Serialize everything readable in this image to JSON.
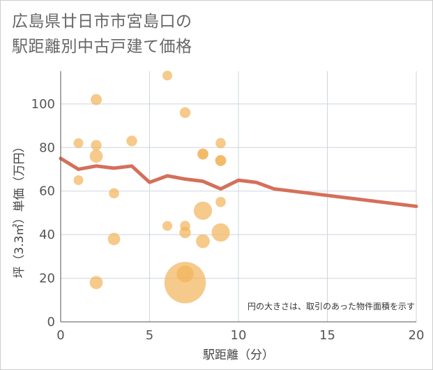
{
  "chart_data": {
    "type": "scatter+line",
    "title_line1": "広島県廿日市市宮島口の",
    "title_line2": "駅距離別中古戸建て価格",
    "xlabel": "駅距離（分）",
    "ylabel": "坪（3.3㎡）単価（万円）",
    "note": "円の大きさは、取引のあった物件面積を示す",
    "xlim": [
      0,
      20
    ],
    "ylim": [
      0,
      115
    ],
    "x_ticks": [
      "0",
      "5",
      "10",
      "15",
      "20"
    ],
    "y_ticks": [
      "0",
      "20",
      "40",
      "60",
      "80",
      "100"
    ],
    "colors": {
      "bubble": "#f2b35a",
      "line": "#d4705a",
      "grid": "#cdd5de"
    },
    "bubbles": [
      {
        "x": 1,
        "y": 82,
        "size": 1
      },
      {
        "x": 1,
        "y": 65,
        "size": 1
      },
      {
        "x": 2,
        "y": 102,
        "size": 1.3
      },
      {
        "x": 2,
        "y": 81,
        "size": 1.2
      },
      {
        "x": 2,
        "y": 76,
        "size": 1.8
      },
      {
        "x": 2,
        "y": 18,
        "size": 1.8
      },
      {
        "x": 3,
        "y": 59,
        "size": 1.1
      },
      {
        "x": 3,
        "y": 38,
        "size": 1.6
      },
      {
        "x": 4,
        "y": 83,
        "size": 1.2
      },
      {
        "x": 6,
        "y": 113,
        "size": 1
      },
      {
        "x": 6,
        "y": 44,
        "size": 1
      },
      {
        "x": 7,
        "y": 96,
        "size": 1.2
      },
      {
        "x": 7,
        "y": 44,
        "size": 1.1
      },
      {
        "x": 7,
        "y": 41,
        "size": 1.4
      },
      {
        "x": 7,
        "y": 22,
        "size": 3
      },
      {
        "x": 7,
        "y": 18,
        "size": 18
      },
      {
        "x": 8,
        "y": 77,
        "size": 1.3
      },
      {
        "x": 8,
        "y": 77,
        "size": 1.1
      },
      {
        "x": 8,
        "y": 51,
        "size": 3.5
      },
      {
        "x": 8,
        "y": 37,
        "size": 2
      },
      {
        "x": 9,
        "y": 82,
        "size": 1.1
      },
      {
        "x": 9,
        "y": 74,
        "size": 1.3
      },
      {
        "x": 9,
        "y": 74,
        "size": 1.1
      },
      {
        "x": 9,
        "y": 55,
        "size": 1.1
      },
      {
        "x": 9,
        "y": 41,
        "size": 3.5
      }
    ],
    "line": {
      "x": [
        0,
        1,
        2,
        3,
        4,
        5,
        6,
        7,
        8,
        9,
        10,
        11,
        12,
        13,
        14,
        15,
        16,
        17,
        18,
        19,
        20
      ],
      "y": [
        75,
        70,
        71.5,
        70.5,
        71.5,
        64,
        67,
        65.5,
        64.5,
        61,
        65,
        64,
        61,
        60,
        59,
        58,
        57,
        56,
        55,
        54,
        53
      ]
    }
  }
}
